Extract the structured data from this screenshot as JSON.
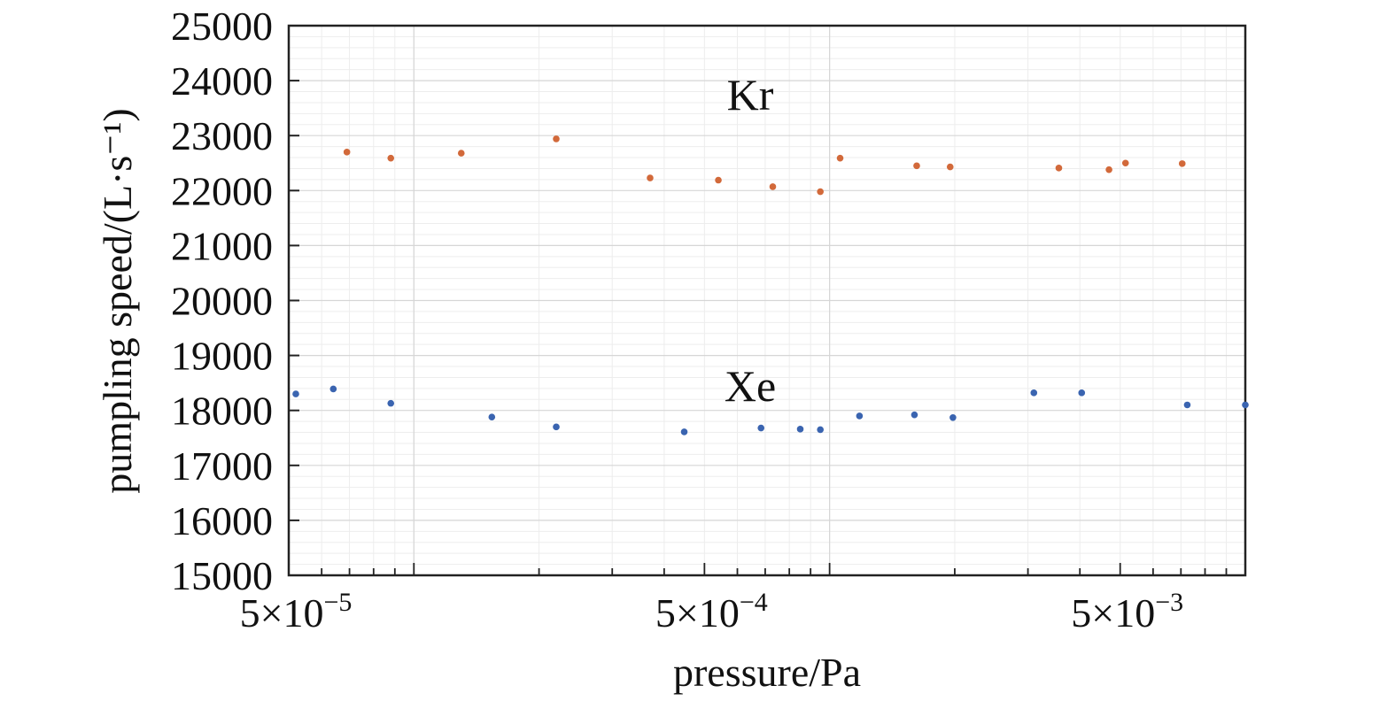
{
  "chart_data": {
    "type": "scatter",
    "title": "",
    "xlabel": "pressure/Pa",
    "ylabel": "pumpling speed/(L·s⁻¹)",
    "x_scale": "log",
    "xlim": [
      5e-05,
      0.01
    ],
    "ylim": [
      15000,
      25000
    ],
    "y_ticks": [
      15000,
      16000,
      17000,
      18000,
      19000,
      20000,
      21000,
      22000,
      23000,
      24000,
      25000
    ],
    "y_tick_labels": [
      "15000",
      "16000",
      "17000",
      "18000",
      "19000",
      "20000",
      "21000",
      "22000",
      "23000",
      "24000",
      "25000"
    ],
    "x_ticks": [
      5e-05,
      0.0005,
      0.005
    ],
    "x_tick_labels": [
      {
        "mantissa": "5×10",
        "exponent": "−5"
      },
      {
        "mantissa": "5×10",
        "exponent": "−4"
      },
      {
        "mantissa": "5×10",
        "exponent": "−3"
      }
    ],
    "grid": true,
    "series": [
      {
        "name": "Kr",
        "color": "#d2693a",
        "points": [
          {
            "x": 6.9e-05,
            "y": 22700
          },
          {
            "x": 8.8e-05,
            "y": 22590
          },
          {
            "x": 0.00013,
            "y": 22680
          },
          {
            "x": 0.00022,
            "y": 22940
          },
          {
            "x": 0.00037,
            "y": 22230
          },
          {
            "x": 0.00054,
            "y": 22190
          },
          {
            "x": 0.00073,
            "y": 22070
          },
          {
            "x": 0.00095,
            "y": 21980
          },
          {
            "x": 0.00106,
            "y": 22590
          },
          {
            "x": 0.00162,
            "y": 22450
          },
          {
            "x": 0.00195,
            "y": 22430
          },
          {
            "x": 0.00356,
            "y": 22410
          },
          {
            "x": 0.0047,
            "y": 22380
          },
          {
            "x": 0.00515,
            "y": 22500
          },
          {
            "x": 0.00705,
            "y": 22490
          }
        ]
      },
      {
        "name": "Xe",
        "color": "#3a64b0",
        "points": [
          {
            "x": 5.2e-05,
            "y": 18300
          },
          {
            "x": 6.4e-05,
            "y": 18390
          },
          {
            "x": 8.8e-05,
            "y": 18130
          },
          {
            "x": 0.000154,
            "y": 17880
          },
          {
            "x": 0.00022,
            "y": 17700
          },
          {
            "x": 0.000447,
            "y": 17610
          },
          {
            "x": 0.000684,
            "y": 17680
          },
          {
            "x": 0.00085,
            "y": 17660
          },
          {
            "x": 0.00095,
            "y": 17650
          },
          {
            "x": 0.00118,
            "y": 17900
          },
          {
            "x": 0.0016,
            "y": 17920
          },
          {
            "x": 0.00198,
            "y": 17870
          },
          {
            "x": 0.0031,
            "y": 18320
          },
          {
            "x": 0.00404,
            "y": 18320
          },
          {
            "x": 0.00725,
            "y": 18100
          },
          {
            "x": 0.01,
            "y": 18100
          }
        ]
      }
    ],
    "annotations": [
      "Kr",
      "Xe"
    ]
  }
}
